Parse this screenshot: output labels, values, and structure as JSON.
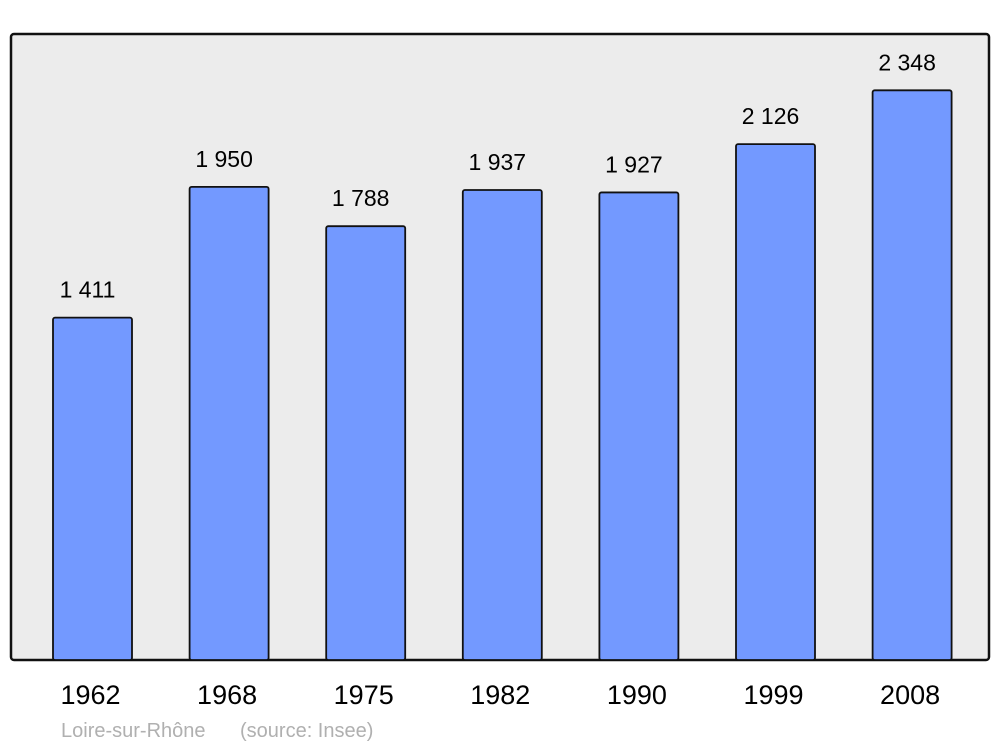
{
  "chart_data": {
    "type": "bar",
    "categories": [
      "1962",
      "1968",
      "1975",
      "1982",
      "1990",
      "1999",
      "2008"
    ],
    "values": [
      1411,
      1950,
      1788,
      1937,
      1927,
      2126,
      2348
    ],
    "value_labels": [
      "1 411",
      "1 950",
      "1 788",
      "1 937",
      "1 927",
      "2 126",
      "2 348"
    ],
    "title": "",
    "xlabel": "",
    "ylabel": "",
    "ylim": [
      0,
      2580
    ],
    "grid": false,
    "bar_color": "#7399ff",
    "background_color": "#ececec"
  },
  "caption": {
    "place": "Loire-sur-Rhône",
    "source": "(source: Insee)"
  }
}
